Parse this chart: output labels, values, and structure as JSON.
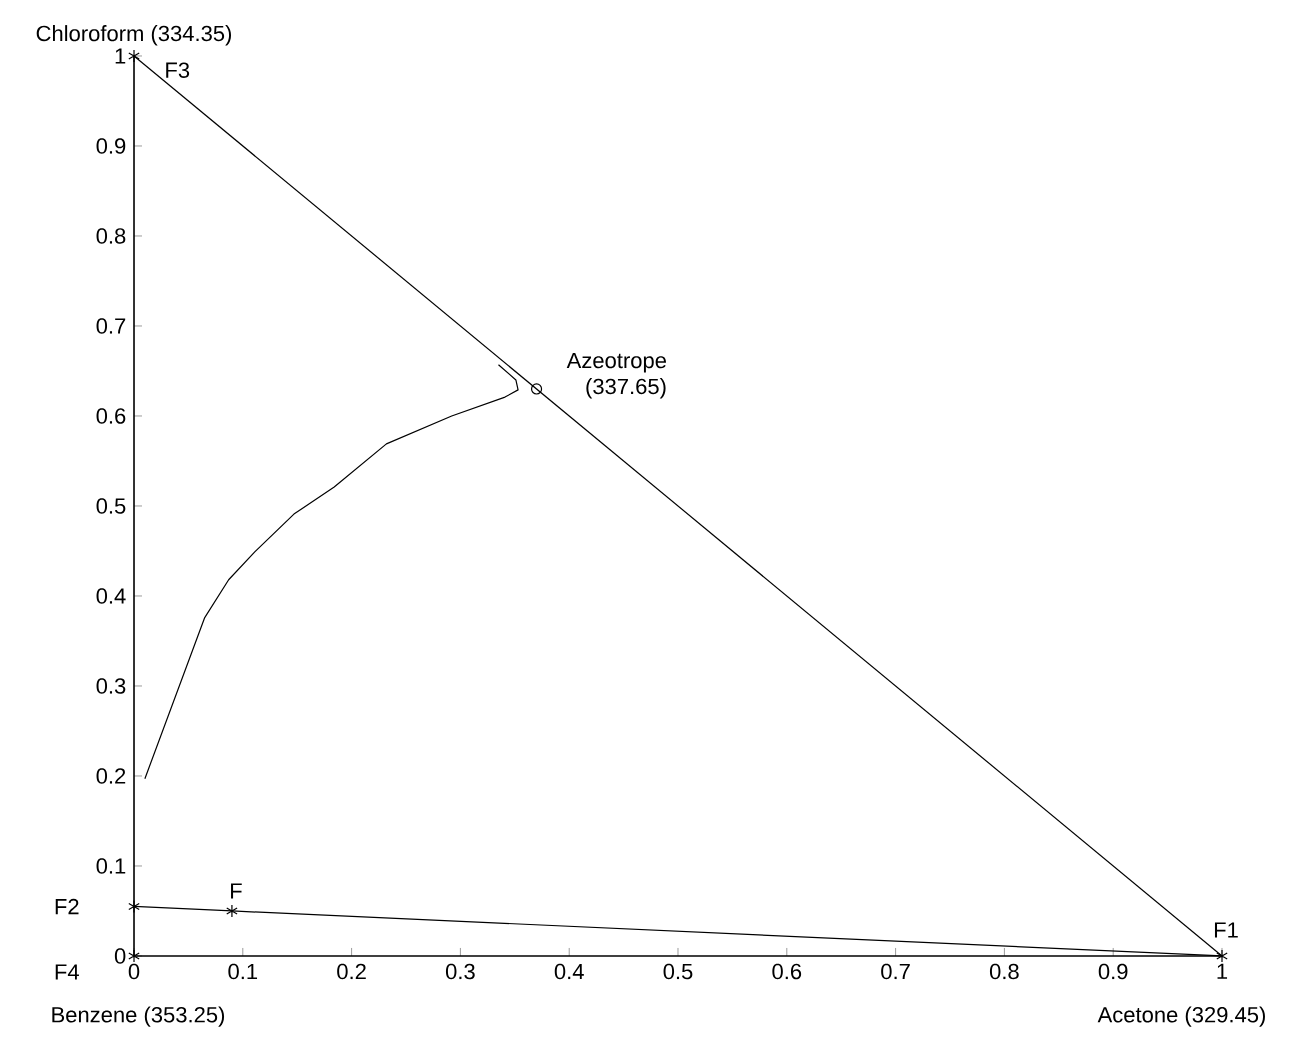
{
  "chart_data": {
    "type": "line",
    "xlim": [
      0,
      1
    ],
    "ylim": [
      0,
      1
    ],
    "xticks": [
      0,
      0.1,
      0.2,
      0.3,
      0.4,
      0.5,
      0.6,
      0.7,
      0.8,
      0.9,
      1
    ],
    "yticks": [
      0,
      0.1,
      0.2,
      0.3,
      0.4,
      0.5,
      0.6,
      0.7,
      0.8,
      0.9,
      1
    ],
    "series": [
      {
        "color": "#000000",
        "marker": "none",
        "x": [
          0,
          1
        ],
        "values": [
          1,
          0
        ]
      },
      {
        "color": "#000000",
        "marker": "none",
        "x": [
          0,
          0.09,
          1
        ],
        "values": [
          0.055,
          0.05,
          0
        ]
      },
      {
        "color": "#000000",
        "marker": "none",
        "x": [
          0.01,
          0.065,
          0.087,
          0.111,
          0.147,
          0.184,
          0.232,
          0.292,
          0.341,
          0.353,
          0.351,
          0.335
        ],
        "values": [
          0.197,
          0.376,
          0.418,
          0.449,
          0.491,
          0.521,
          0.569,
          0.6,
          0.621,
          0.629,
          0.64,
          0.657
        ]
      },
      {
        "type": "scatter",
        "color": "#000000",
        "marker": "cross",
        "x": [
          0,
          0,
          0.09,
          0,
          1
        ],
        "values": [
          1,
          0.055,
          0.05,
          0,
          0
        ]
      },
      {
        "type": "scatter",
        "color": "#000000",
        "marker": "circle",
        "x": [
          0.37
        ],
        "values": [
          0.63
        ]
      }
    ],
    "annotations": [
      {
        "text": "Chloroform (334.35)",
        "x": 0,
        "y": 1
      },
      {
        "text": "F3",
        "x": 0,
        "y": 1
      },
      {
        "text": "Azeotrope (337.65)",
        "x": 0.37,
        "y": 0.63
      },
      {
        "text": "F",
        "x": 0.09,
        "y": 0.05
      },
      {
        "text": "F2",
        "x": 0,
        "y": 0.055
      },
      {
        "text": "F4",
        "x": 0,
        "y": 0
      },
      {
        "text": "F1",
        "x": 1,
        "y": 0
      },
      {
        "text": "Benzene (353.25)",
        "x": 0,
        "y": 0
      },
      {
        "text": "Acetone (329.45)",
        "x": 1,
        "y": 0
      }
    ]
  }
}
